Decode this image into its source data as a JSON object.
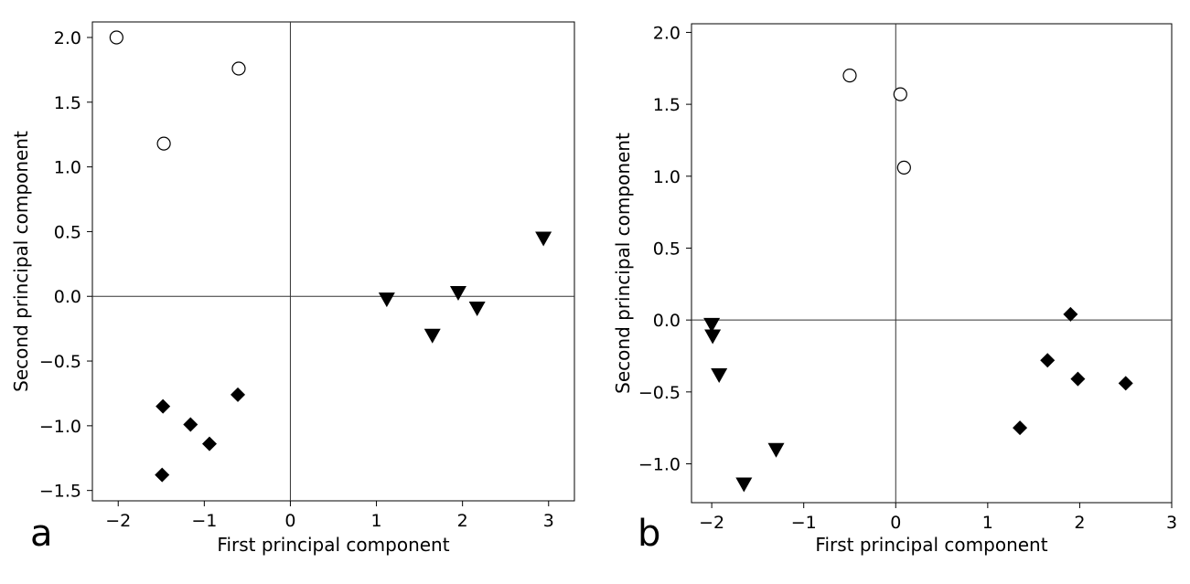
{
  "chart_data": [
    {
      "type": "scatter",
      "panel_label": "a",
      "xlabel": "First principal component",
      "ylabel": "Second principal component",
      "xlim": [
        -2.3,
        3.3
      ],
      "ylim": [
        -1.58,
        2.12
      ],
      "xticks": [
        -2,
        -1,
        0,
        1,
        2,
        3
      ],
      "xtick_labels": [
        "−2",
        "−1",
        "0",
        "1",
        "2",
        "3"
      ],
      "yticks": [
        -1.5,
        -1.0,
        -0.5,
        0.0,
        0.5,
        1.0,
        1.5,
        2.0
      ],
      "ytick_labels": [
        "−1.5",
        "−1.0",
        "−0.5",
        "0.0",
        "0.5",
        "1.0",
        "1.5",
        "2.0"
      ],
      "grid": false,
      "reference_lines": {
        "x": 0,
        "y": 0
      },
      "series": [
        {
          "marker": "circle-open",
          "points": [
            [
              -2.02,
              2.0
            ],
            [
              -1.47,
              1.18
            ],
            [
              -0.6,
              1.76
            ]
          ]
        },
        {
          "marker": "triangle-down",
          "points": [
            [
              1.12,
              -0.02
            ],
            [
              1.65,
              -0.3
            ],
            [
              1.95,
              0.03
            ],
            [
              2.17,
              -0.09
            ],
            [
              2.94,
              0.45
            ]
          ]
        },
        {
          "marker": "diamond",
          "points": [
            [
              -1.48,
              -0.85
            ],
            [
              -1.16,
              -0.99
            ],
            [
              -0.94,
              -1.14
            ],
            [
              -0.61,
              -0.76
            ],
            [
              -1.49,
              -1.38
            ]
          ]
        }
      ]
    },
    {
      "type": "scatter",
      "panel_label": "b",
      "xlabel": "First principal component",
      "ylabel": "Second principal component",
      "xlim": [
        -2.22,
        3.0
      ],
      "ylim": [
        -1.27,
        2.06
      ],
      "xticks": [
        -2,
        -1,
        0,
        1,
        2,
        3
      ],
      "xtick_labels": [
        "−2",
        "−1",
        "0",
        "1",
        "2",
        "3"
      ],
      "yticks": [
        -1.0,
        -0.5,
        0.0,
        0.5,
        1.0,
        1.5,
        2.0
      ],
      "ytick_labels": [
        "−1.0",
        "−0.5",
        "0.0",
        "0.5",
        "1.0",
        "1.5",
        "2.0"
      ],
      "grid": false,
      "reference_lines": {
        "x": 0,
        "y": 0
      },
      "series": [
        {
          "marker": "circle-open",
          "points": [
            [
              -0.5,
              1.7
            ],
            [
              0.05,
              1.57
            ],
            [
              0.09,
              1.06
            ]
          ]
        },
        {
          "marker": "triangle-down",
          "points": [
            [
              -2.0,
              -0.03
            ],
            [
              -1.99,
              -0.11
            ],
            [
              -1.92,
              -0.38
            ],
            [
              -1.3,
              -0.9
            ],
            [
              -1.65,
              -1.14
            ]
          ]
        },
        {
          "marker": "diamond",
          "points": [
            [
              1.9,
              0.04
            ],
            [
              1.65,
              -0.28
            ],
            [
              1.98,
              -0.41
            ],
            [
              2.5,
              -0.44
            ],
            [
              1.35,
              -0.75
            ]
          ]
        }
      ]
    }
  ]
}
